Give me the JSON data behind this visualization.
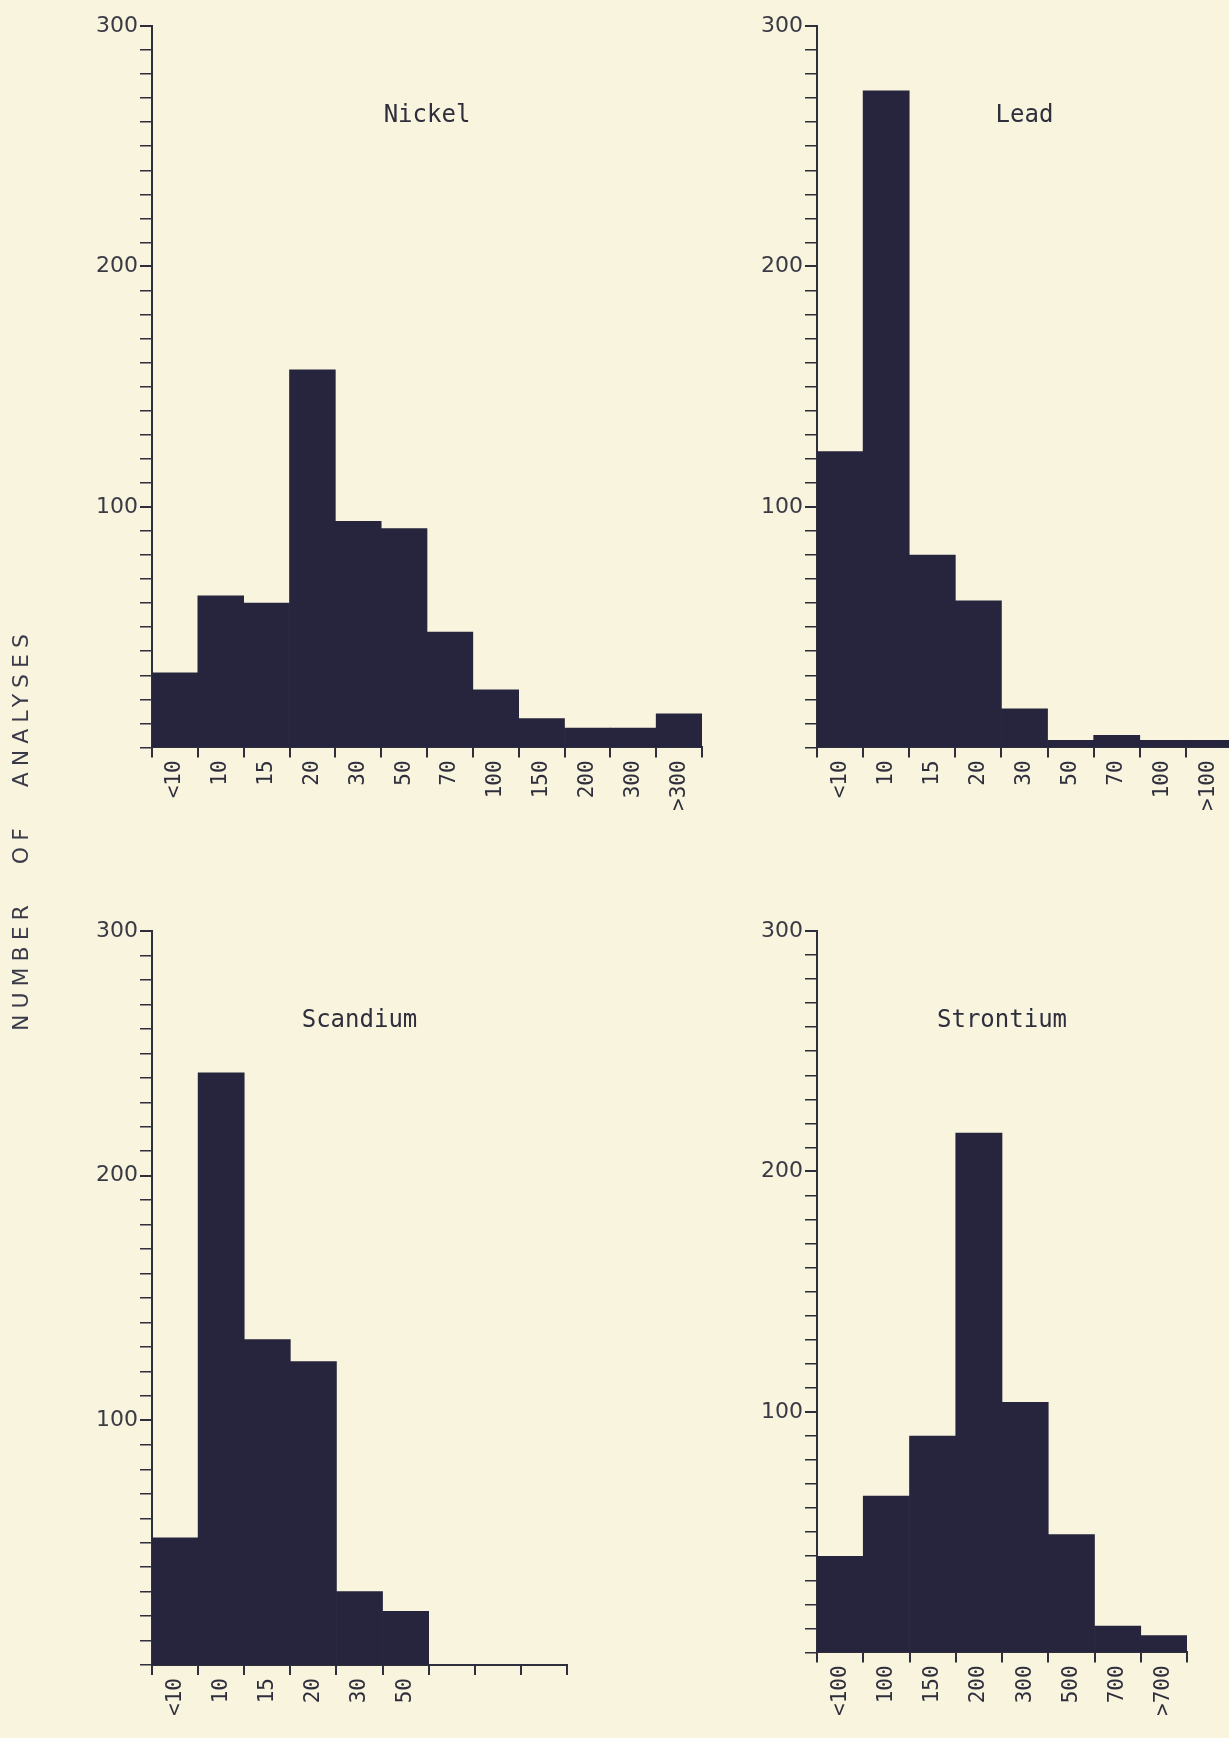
{
  "chart_data": [
    {
      "type": "bar",
      "title": "Nickel",
      "ylabel": "NUMBER OF ANALYSES",
      "categories": [
        "<10",
        "10",
        "15",
        "20",
        "30",
        "50",
        "70",
        "100",
        "150",
        "200",
        "300",
        ">300"
      ],
      "values": [
        31,
        63,
        60,
        157,
        94,
        91,
        48,
        24,
        12,
        8,
        8,
        14
      ],
      "color": "#26253d",
      "ylim": [
        0,
        300
      ],
      "yticks": [
        {
          "value": 0,
          "label": null
        },
        {
          "value": 10,
          "label": null
        },
        {
          "value": 20,
          "label": null
        },
        {
          "value": 30,
          "label": null
        },
        {
          "value": 40,
          "label": null
        },
        {
          "value": 50,
          "label": null
        },
        {
          "value": 60,
          "label": null
        },
        {
          "value": 70,
          "label": null
        },
        {
          "value": 80,
          "label": null
        },
        {
          "value": 90,
          "label": null
        },
        100,
        {
          "value": 110,
          "label": null
        },
        {
          "value": 120,
          "label": null
        },
        {
          "value": 130,
          "label": null
        },
        {
          "value": 140,
          "label": null
        },
        {
          "value": 150,
          "label": null
        },
        {
          "value": 160,
          "label": null
        },
        {
          "value": 170,
          "label": null
        },
        {
          "value": 180,
          "label": null
        },
        {
          "value": 190,
          "label": null
        },
        200,
        {
          "value": 210,
          "label": null
        },
        {
          "value": 220,
          "label": null
        },
        {
          "value": 230,
          "label": null
        },
        {
          "value": 240,
          "label": null
        },
        {
          "value": 250,
          "label": null
        },
        {
          "value": 260,
          "label": null
        },
        {
          "value": 270,
          "label": null
        },
        {
          "value": 280,
          "label": null
        },
        {
          "value": 290,
          "label": null
        },
        300
      ],
      "legend": false,
      "grid": false
    },
    {
      "type": "bar",
      "title": "Lead",
      "categories": [
        "<10",
        "10",
        "15",
        "20",
        "30",
        "50",
        "70",
        "100",
        ">100"
      ],
      "values": [
        123,
        273,
        80,
        61,
        16,
        3,
        5,
        3,
        3
      ],
      "color": "#26253d",
      "ylim": [
        0,
        300
      ],
      "yticks": [
        {
          "value": 0,
          "label": null
        },
        {
          "value": 10,
          "label": null
        },
        {
          "value": 20,
          "label": null
        },
        {
          "value": 30,
          "label": null
        },
        {
          "value": 40,
          "label": null
        },
        {
          "value": 50,
          "label": null
        },
        {
          "value": 60,
          "label": null
        },
        {
          "value": 70,
          "label": null
        },
        {
          "value": 80,
          "label": null
        },
        {
          "value": 90,
          "label": null
        },
        100,
        {
          "value": 110,
          "label": null
        },
        {
          "value": 120,
          "label": null
        },
        {
          "value": 130,
          "label": null
        },
        {
          "value": 140,
          "label": null
        },
        {
          "value": 150,
          "label": null
        },
        {
          "value": 160,
          "label": null
        },
        {
          "value": 170,
          "label": null
        },
        {
          "value": 180,
          "label": null
        },
        {
          "value": 190,
          "label": null
        },
        200,
        {
          "value": 210,
          "label": null
        },
        {
          "value": 220,
          "label": null
        },
        {
          "value": 230,
          "label": null
        },
        {
          "value": 240,
          "label": null
        },
        {
          "value": 250,
          "label": null
        },
        {
          "value": 260,
          "label": null
        },
        {
          "value": 270,
          "label": null
        },
        {
          "value": 280,
          "label": null
        },
        {
          "value": 290,
          "label": null
        },
        300
      ],
      "legend": false,
      "grid": false
    },
    {
      "type": "bar",
      "title": "Scandium",
      "categories": [
        "<10",
        "10",
        "15",
        "20",
        "30",
        "50",
        null,
        null,
        null
      ],
      "values": [
        52,
        242,
        133,
        124,
        30,
        22,
        null,
        null,
        null
      ],
      "color": "#26253d",
      "ylim": [
        0,
        300
      ],
      "yticks": [
        {
          "value": 0,
          "label": null
        },
        {
          "value": 10,
          "label": null
        },
        {
          "value": 20,
          "label": null
        },
        {
          "value": 30,
          "label": null
        },
        {
          "value": 40,
          "label": null
        },
        {
          "value": 50,
          "label": null
        },
        {
          "value": 60,
          "label": null
        },
        {
          "value": 70,
          "label": null
        },
        {
          "value": 80,
          "label": null
        },
        {
          "value": 90,
          "label": null
        },
        100,
        {
          "value": 110,
          "label": null
        },
        {
          "value": 120,
          "label": null
        },
        {
          "value": 130,
          "label": null
        },
        {
          "value": 140,
          "label": null
        },
        {
          "value": 150,
          "label": null
        },
        {
          "value": 160,
          "label": null
        },
        {
          "value": 170,
          "label": null
        },
        {
          "value": 180,
          "label": null
        },
        {
          "value": 190,
          "label": null
        },
        200,
        {
          "value": 210,
          "label": null
        },
        {
          "value": 220,
          "label": null
        },
        {
          "value": 230,
          "label": null
        },
        {
          "value": 240,
          "label": null
        },
        {
          "value": 250,
          "label": null
        },
        {
          "value": 260,
          "label": null
        },
        {
          "value": 270,
          "label": null
        },
        {
          "value": 280,
          "label": null
        },
        {
          "value": 290,
          "label": null
        },
        300
      ],
      "legend": false,
      "grid": false
    },
    {
      "type": "bar",
      "title": "Strontium",
      "categories": [
        "<100",
        "100",
        "150",
        "200",
        "300",
        "500",
        "700",
        ">700"
      ],
      "values": [
        40,
        65,
        90,
        216,
        104,
        49,
        11,
        7
      ],
      "color": "#26253d",
      "ylim": [
        0,
        300
      ],
      "yticks": [
        {
          "value": 0,
          "label": null
        },
        {
          "value": 10,
          "label": null
        },
        {
          "value": 20,
          "label": null
        },
        {
          "value": 30,
          "label": null
        },
        {
          "value": 40,
          "label": null
        },
        {
          "value": 50,
          "label": null
        },
        {
          "value": 60,
          "label": null
        },
        {
          "value": 70,
          "label": null
        },
        {
          "value": 80,
          "label": null
        },
        {
          "value": 90,
          "label": null
        },
        100,
        {
          "value": 110,
          "label": null
        },
        {
          "value": 120,
          "label": null
        },
        {
          "value": 130,
          "label": null
        },
        {
          "value": 140,
          "label": null
        },
        {
          "value": 150,
          "label": null
        },
        {
          "value": 160,
          "label": null
        },
        {
          "value": 170,
          "label": null
        },
        {
          "value": 180,
          "label": null
        },
        {
          "value": 190,
          "label": null
        },
        200,
        {
          "value": 210,
          "label": null
        },
        {
          "value": 220,
          "label": null
        },
        {
          "value": 230,
          "label": null
        },
        {
          "value": 240,
          "label": null
        },
        {
          "value": 250,
          "label": null
        },
        {
          "value": 260,
          "label": null
        },
        {
          "value": 270,
          "label": null
        },
        {
          "value": 280,
          "label": null
        },
        {
          "value": 290,
          "label": null
        },
        300
      ],
      "legend": false,
      "grid": false
    }
  ]
}
